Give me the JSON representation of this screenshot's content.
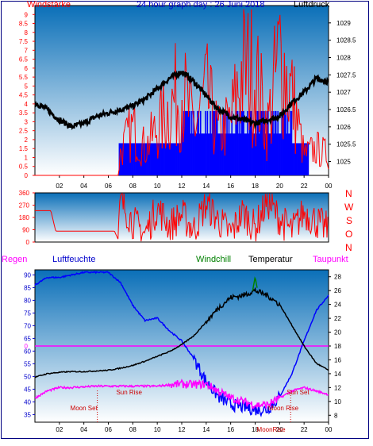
{
  "header": {
    "title": "24 hour graph day : 26 Juni 2018",
    "left_label": "Windstärke",
    "right_label": "Luftdruck"
  },
  "direction_labels": [
    "N",
    "W",
    "S",
    "O",
    "N"
  ],
  "lower_header": {
    "regen": "Regen",
    "luftfeuchte": "Luftfeuchte",
    "windchill": "Windchill",
    "temperatur": "Temperatur",
    "taupunkt": "Taupunkt"
  },
  "annotations": {
    "sun_rise": "Sun Rise",
    "sun_set": "Sun Set",
    "moon_set": "Moon Set",
    "moon_rise": "Moon Rise",
    "moon_rise_axis": "MoonRise"
  },
  "colors": {
    "wind": "#ff0000",
    "gust_fill": "#0000ff",
    "pressure": "#000000",
    "humidity": "#0000ff",
    "temperature": "#000000",
    "dewpoint": "#ff00ff",
    "windchill": "#008000",
    "regen": "#ff00ff",
    "title": "#0000cc",
    "bg_top": "#0a6fb8",
    "bg_bottom": "#ffffff"
  },
  "chart_data": [
    {
      "type": "line",
      "name": "wind",
      "x_ticks": [
        "02",
        "04",
        "06",
        "08",
        "10",
        "12",
        "14",
        "16",
        "18",
        "20",
        "22",
        "00"
      ],
      "ylim_left": [
        0,
        9.5
      ],
      "left_ticks": [
        "0",
        "0.5",
        "1",
        "1.5",
        "2",
        "2.5",
        "3",
        "3.5",
        "4",
        "4.5",
        "5",
        "5.5",
        "6",
        "6.5",
        "7",
        "7.5",
        "8",
        "8.5",
        "9"
      ],
      "ylim_right": [
        1024.6,
        1029.5
      ],
      "right_ticks": [
        "1025",
        "1025.5",
        "1026",
        "1026.5",
        "1027",
        "1027.5",
        "1028",
        "1028.5",
        "1029"
      ],
      "series": [
        {
          "name": "Windstärke",
          "x": [
            0,
            6.8,
            7,
            8,
            9,
            10,
            11,
            12,
            13,
            14,
            15,
            16,
            17,
            18,
            19,
            20,
            21,
            22,
            23,
            24
          ],
          "values": [
            0,
            0,
            1.8,
            3.5,
            2,
            3.5,
            5,
            6.5,
            3.5,
            6,
            3,
            4,
            8,
            7.5,
            3.5,
            9,
            6,
            1.5,
            2,
            1.5
          ]
        },
        {
          "name": "Luftdruck",
          "x": [
            0,
            1,
            2,
            3,
            4,
            5,
            6,
            7,
            8,
            9,
            10,
            11,
            12,
            13,
            14,
            15,
            16,
            17,
            18,
            19,
            20,
            21,
            22,
            23,
            24
          ],
          "values": [
            1026.7,
            1026.5,
            1026.2,
            1026,
            1026.1,
            1026.3,
            1026.4,
            1026.5,
            1026.6,
            1026.8,
            1027.1,
            1027.4,
            1027.6,
            1027.3,
            1026.9,
            1026.5,
            1026.3,
            1026.2,
            1026.1,
            1026.2,
            1026.3,
            1026.7,
            1027.0,
            1027.4,
            1027.3
          ]
        }
      ]
    },
    {
      "type": "line",
      "name": "wind_direction",
      "ylim": [
        0,
        360
      ],
      "left_ticks": [
        "0",
        "90",
        "180",
        "270",
        "360"
      ],
      "x": [
        0,
        1.3,
        1.7,
        6.5,
        6.8,
        7,
        8,
        9,
        10,
        11,
        12,
        13,
        14,
        15,
        16,
        17,
        18,
        19,
        20,
        21,
        22,
        23,
        24
      ],
      "values": [
        230,
        230,
        80,
        80,
        20,
        300,
        150,
        60,
        250,
        120,
        200,
        90,
        280,
        160,
        60,
        220,
        100,
        300,
        170,
        80,
        220,
        150,
        90
      ]
    },
    {
      "type": "line",
      "name": "temperature_humidity",
      "left_ticks": [
        "35",
        "40",
        "45",
        "50",
        "55",
        "60",
        "65",
        "70",
        "75",
        "80",
        "85",
        "90"
      ],
      "ylim_left": [
        32,
        92
      ],
      "right_ticks": [
        "8",
        "10",
        "12",
        "14",
        "16",
        "18",
        "20",
        "22",
        "24",
        "26",
        "28"
      ],
      "ylim_right": [
        7,
        29
      ],
      "rain_label": "0",
      "series": [
        {
          "name": "Luftfeuchte",
          "x": [
            0,
            1,
            2,
            3,
            4,
            5,
            6,
            7,
            8,
            9,
            10,
            11,
            12,
            13,
            14,
            15,
            16,
            17,
            18,
            19,
            20,
            21,
            22,
            23,
            24
          ],
          "values": [
            86,
            89,
            89,
            90,
            91,
            91,
            91,
            87,
            78,
            72,
            73,
            68,
            64,
            57,
            48,
            42,
            39,
            38,
            37,
            37,
            42,
            51,
            64,
            76,
            82
          ]
        },
        {
          "name": "Temperatur",
          "x": [
            0,
            1,
            2,
            3,
            4,
            5,
            6,
            7,
            8,
            9,
            10,
            11,
            12,
            13,
            14,
            15,
            16,
            17,
            18,
            19,
            20,
            21,
            22,
            23,
            24
          ],
          "values": [
            13.5,
            14,
            14.2,
            14.3,
            14.3,
            14.4,
            14.5,
            14.8,
            15.2,
            15.8,
            16.5,
            17.2,
            18.2,
            19.5,
            21.5,
            23.5,
            25,
            25.3,
            26,
            25.3,
            24,
            21,
            18,
            15.5,
            14.5
          ]
        },
        {
          "name": "Taupunkt",
          "x": [
            0,
            1,
            2,
            3,
            4,
            5,
            6,
            7,
            8,
            9,
            10,
            11,
            12,
            13,
            14,
            15,
            16,
            17,
            18,
            19,
            20,
            21,
            22,
            23,
            24
          ],
          "values": [
            10.5,
            11.5,
            12,
            12,
            12.1,
            12.2,
            12.2,
            12.2,
            12.2,
            12.2,
            12.2,
            12.4,
            12.5,
            12.4,
            12.5,
            11.5,
            10.5,
            10,
            9.5,
            9.5,
            10.5,
            11.5,
            12,
            11.5,
            11
          ]
        },
        {
          "name": "Windchill",
          "x": [
            17.8,
            18,
            18.2
          ],
          "values": [
            26,
            28,
            26
          ]
        }
      ]
    }
  ]
}
